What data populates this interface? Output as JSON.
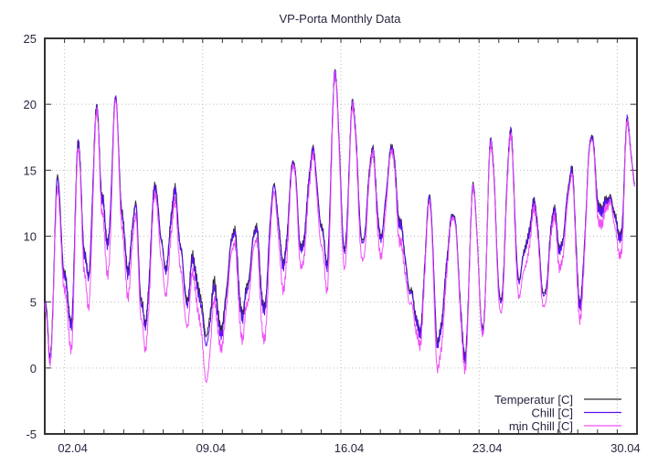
{
  "chart_data": {
    "type": "line",
    "title": "VP-Porta Monthly Data",
    "xlabel": "",
    "ylabel": "",
    "xlim": [
      1,
      31
    ],
    "ylim": [
      -5,
      25
    ],
    "grid": true,
    "legend_position": "bottom-right",
    "x_ticks": [
      {
        "value": 2,
        "label": "02.04"
      },
      {
        "value": 9,
        "label": "09.04"
      },
      {
        "value": 16,
        "label": "16.04"
      },
      {
        "value": 23,
        "label": "23.04"
      },
      {
        "value": 30,
        "label": "30.04"
      }
    ],
    "y_ticks": [
      -5,
      0,
      5,
      10,
      15,
      20,
      25
    ],
    "x": [
      1.0,
      1.28,
      1.65,
      2.0,
      2.35,
      2.7,
      3.0,
      3.2,
      3.65,
      3.9,
      4.2,
      4.6,
      4.9,
      5.2,
      5.6,
      5.9,
      6.1,
      6.6,
      6.9,
      7.1,
      7.6,
      7.9,
      8.2,
      8.5,
      8.8,
      9.2,
      9.6,
      9.9,
      10.6,
      11.0,
      11.2,
      11.7,
      12.1,
      12.6,
      13.1,
      13.6,
      14.0,
      14.6,
      15.0,
      15.3,
      15.7,
      16.2,
      16.6,
      17.1,
      17.6,
      18.0,
      18.6,
      19.0,
      19.5,
      20.0,
      20.5,
      20.9,
      21.7,
      22.3,
      22.7,
      23.2,
      23.6,
      24.1,
      24.6,
      25.0,
      25.4,
      25.8,
      26.3,
      26.8,
      27.1,
      27.7,
      28.1,
      28.7,
      29.1,
      29.6,
      30.2,
      30.5,
      30.9
    ],
    "series": [
      {
        "name": "Temperatur [C]",
        "color": "#2e2a33",
        "values": [
          5.5,
          0.8,
          14.5,
          7,
          3.5,
          17.3,
          9,
          7,
          19.8,
          13,
          9.5,
          20.5,
          12,
          7.5,
          12.5,
          5,
          3.5,
          14,
          10,
          7.5,
          13.5,
          9,
          5,
          8.5,
          6,
          2.5,
          6.5,
          3,
          10.5,
          4,
          6,
          10.8,
          4.5,
          13.8,
          8,
          15.8,
          9,
          16.5,
          11,
          8,
          22.2,
          9,
          20,
          9.5,
          16.5,
          10,
          16.8,
          11,
          6,
          2.8,
          13,
          2,
          11.8,
          1,
          13.8,
          2.8,
          17.2,
          5,
          17.8,
          6.8,
          9.5,
          12.5,
          5.5,
          12,
          9,
          15,
          5,
          17.7,
          12,
          13,
          10,
          18.7,
          14
        ]
      },
      {
        "name": "Chill [C]",
        "color": "#5a10f0",
        "values": [
          5.3,
          0.7,
          14.3,
          6.8,
          3.3,
          17.2,
          8.8,
          6.8,
          19.7,
          12.8,
          9.3,
          20.6,
          11.8,
          7.2,
          12.3,
          4.6,
          3.3,
          13.8,
          9.8,
          7.3,
          13.3,
          8.8,
          4.6,
          8.2,
          5.5,
          1.8,
          6,
          2.5,
          10.3,
          3.6,
          5.6,
          10.6,
          4.2,
          13.7,
          7.8,
          15.7,
          8.8,
          16.4,
          10.8,
          7.8,
          22.3,
          8.8,
          20,
          9.3,
          16.4,
          9.8,
          16.7,
          10.8,
          5.8,
          2.7,
          12.9,
          1.8,
          11.7,
          0.8,
          13.7,
          2.7,
          17.2,
          4.8,
          17.8,
          6.6,
          9.3,
          12.4,
          5.3,
          11.9,
          8.8,
          14.9,
          4.8,
          17.7,
          11.8,
          12.8,
          9.8,
          18.7,
          13.8
        ]
      },
      {
        "name": "min Chill [C]",
        "color": "#f050f8",
        "values": [
          4.8,
          0.5,
          13.5,
          5.8,
          1.5,
          16.8,
          7.5,
          4.5,
          19.5,
          11.8,
          7,
          20.3,
          10.8,
          5.5,
          11.5,
          3.5,
          1.5,
          13.3,
          8.5,
          5.5,
          12.5,
          7.2,
          3,
          7.2,
          4,
          -1,
          5,
          1.5,
          9.5,
          2,
          4.5,
          9.8,
          2,
          13.2,
          6,
          15.5,
          7.5,
          16,
          9.5,
          6,
          22,
          7.5,
          19.8,
          8,
          16.2,
          8.5,
          16.5,
          9.5,
          5,
          1.8,
          12.5,
          0,
          11.5,
          0,
          13.5,
          2.5,
          17,
          4,
          17.5,
          5.5,
          8,
          12,
          4.5,
          11.5,
          7.5,
          14.5,
          3.8,
          17.5,
          10.8,
          12.5,
          8.5,
          18.5,
          13.8
        ]
      }
    ]
  }
}
